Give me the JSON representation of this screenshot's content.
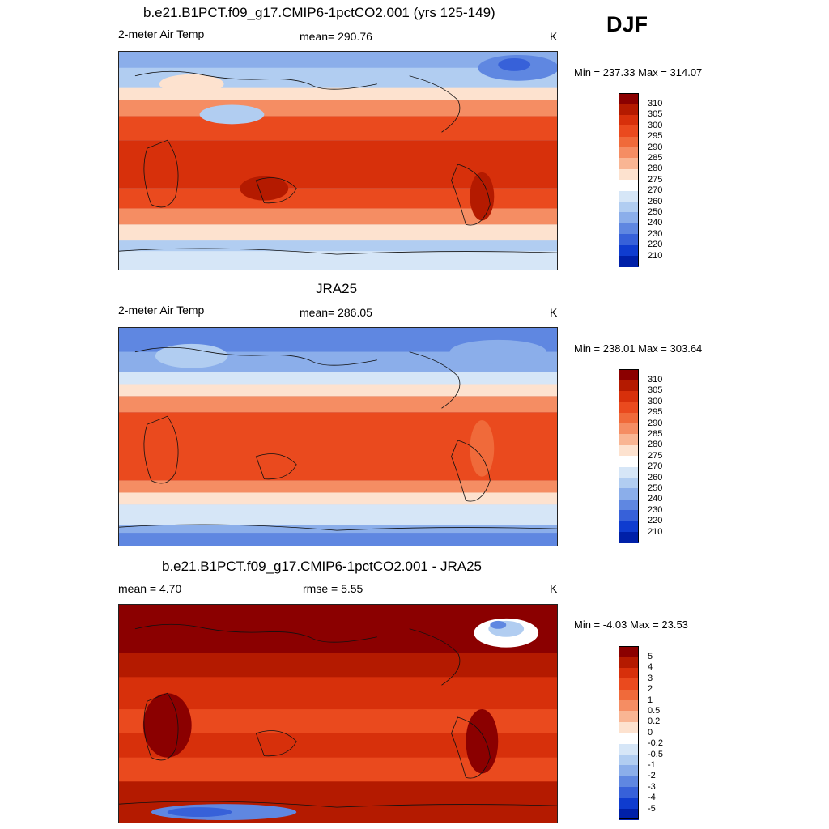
{
  "season": "DJF",
  "panels": [
    {
      "title": "b.e21.B1PCT.f09_g17.CMIP6-1pctCO2.001 (yrs 125-149)",
      "left_label": "2-meter Air Temp",
      "center_label": "mean= 290.76",
      "units": "K",
      "minmax": "Min = 237.33 Max = 314.07",
      "levels": [
        "310",
        "305",
        "300",
        "295",
        "290",
        "285",
        "280",
        "275",
        "270",
        "260",
        "250",
        "240",
        "230",
        "220",
        "210"
      ]
    },
    {
      "title": "JRA25",
      "left_label": "2-meter Air Temp",
      "center_label": "mean= 286.05",
      "units": "K",
      "minmax": "Min = 238.01 Max = 303.64",
      "levels": [
        "310",
        "305",
        "300",
        "295",
        "290",
        "285",
        "280",
        "275",
        "270",
        "260",
        "250",
        "240",
        "230",
        "220",
        "210"
      ]
    },
    {
      "title": "b.e21.B1PCT.f09_g17.CMIP6-1pctCO2.001 - JRA25",
      "left_label": "mean =   4.70",
      "center_label": "rmse =   5.55",
      "units": "K",
      "minmax": "Min =  -4.03 Max =  23.53",
      "levels": [
        "5",
        "4",
        "3",
        "2",
        "1",
        "0.5",
        "0.2",
        "0",
        "-0.2",
        "-0.5",
        "-1",
        "-2",
        "-3",
        "-4",
        "-5"
      ]
    }
  ],
  "colors": {
    "abs_scale": [
      "#8b0000",
      "#b41a00",
      "#d7300b",
      "#ea4a1e",
      "#f06a3a",
      "#f58d63",
      "#f9b593",
      "#fde2cf",
      "#ffffff",
      "#d6e6f7",
      "#b1cdf1",
      "#8baeea",
      "#5f87e1",
      "#3761d9",
      "#0f3ccf",
      "#0020a8",
      "#00007d"
    ],
    "diff_scale": [
      "#8b0000",
      "#b41a00",
      "#d7300b",
      "#ea4a1e",
      "#f06a3a",
      "#f58d63",
      "#f9b593",
      "#fde2cf",
      "#ffffff",
      "#d6e6f7",
      "#b1cdf1",
      "#8baeea",
      "#5f87e1",
      "#3761d9",
      "#0f3ccf",
      "#0020a8",
      "#00007d"
    ],
    "coast": "#111111"
  }
}
